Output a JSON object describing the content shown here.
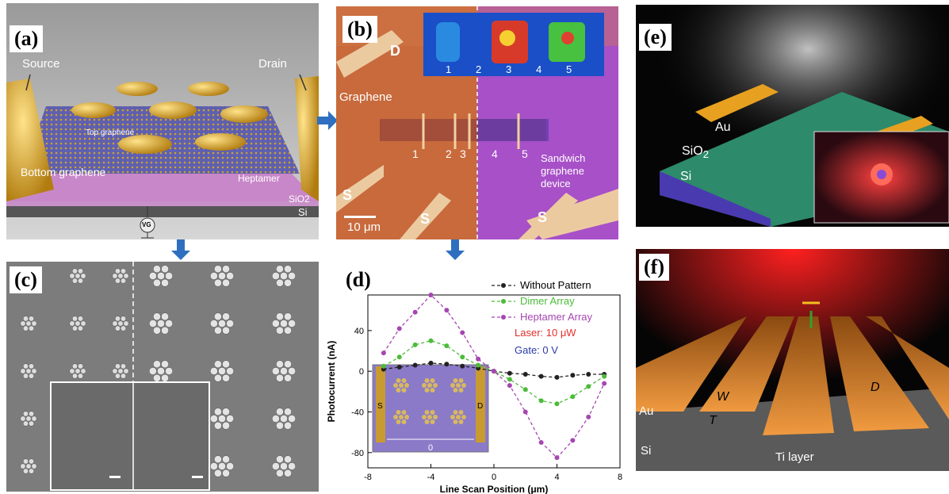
{
  "panel_a": {
    "label": "(a)",
    "source": "Source",
    "drain": "Drain",
    "top_graphene": "Top graphene",
    "bottom_graphene": "Bottom graphene",
    "heptamer": "Heptamer",
    "sio2": "SiO2",
    "si": "Si",
    "gate": "VG"
  },
  "panel_b": {
    "label": "(b)",
    "graphene": "Graphene",
    "sandwich": [
      "Sandwich",
      "graphene",
      "device"
    ],
    "device_numbers": [
      "1",
      "2",
      "3",
      "4",
      "5"
    ],
    "inset_numbers": [
      "1",
      "2",
      "3",
      "4",
      "5"
    ],
    "D": "D",
    "S": "S",
    "scalebar": "10 μm"
  },
  "panel_c": {
    "label": "(c)"
  },
  "panel_d": {
    "label": "(d)",
    "laser": "Laser: 10 μW",
    "gate": "Gate: 0 V",
    "inset_S": "S",
    "inset_D": "D",
    "inset_zero": "0"
  },
  "panel_e": {
    "label": "(e)",
    "au": "Au",
    "sio2": "SiO",
    "sio2_sub": "2",
    "si": "Si"
  },
  "panel_f": {
    "label": "(f)",
    "au": "Au",
    "W": "W",
    "T": "T",
    "D": "D",
    "si": "Si",
    "ti_layer": "Ti layer"
  },
  "chart_data": {
    "type": "line",
    "xlabel": "Line Scan Position (μm)",
    "ylabel": "Photocurrent (nA)",
    "xlim": [
      -8,
      8
    ],
    "ylim": [
      -95,
      75
    ],
    "xticks": [
      -8,
      -4,
      0,
      4,
      8
    ],
    "yticks": [
      -80,
      -40,
      0,
      40
    ],
    "x": [
      -7,
      -6,
      -5,
      -4,
      -3,
      -2,
      -1,
      0,
      1,
      2,
      3,
      4,
      5,
      6,
      7
    ],
    "series": [
      {
        "name": "Without Pattern",
        "color": "#222222",
        "values": [
          2,
          4,
          6,
          8,
          7,
          5,
          3,
          0,
          -2,
          -3,
          -5,
          -6,
          -4,
          -3,
          -3
        ]
      },
      {
        "name": "Dimer Array",
        "color": "#4dbb3a",
        "values": [
          5,
          14,
          26,
          30,
          25,
          14,
          6,
          0,
          -8,
          -18,
          -29,
          -32,
          -25,
          -15,
          -5
        ]
      },
      {
        "name": "Heptamer Array",
        "color": "#a646b2",
        "values": [
          18,
          42,
          58,
          75,
          60,
          38,
          12,
          0,
          -14,
          -40,
          -70,
          -85,
          -68,
          -45,
          -12
        ]
      }
    ]
  }
}
